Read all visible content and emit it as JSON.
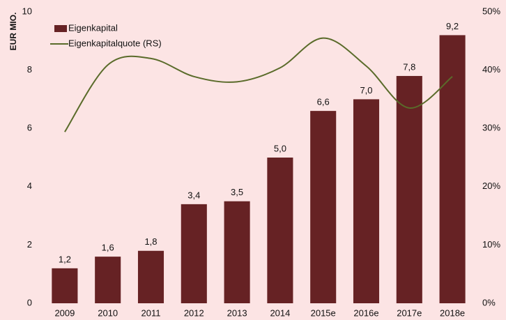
{
  "chart_data": {
    "type": "bar_line",
    "y_label": "EUR MIO.",
    "categories": [
      "2009",
      "2010",
      "2011",
      "2012",
      "2013",
      "2014",
      "2015e",
      "2016e",
      "2017e",
      "2018e"
    ],
    "series": [
      {
        "name": "Eigenkapital",
        "type": "bar",
        "color": "#662224",
        "values": [
          1.2,
          1.6,
          1.8,
          3.4,
          3.5,
          5.0,
          6.6,
          7.0,
          7.8,
          9.2
        ],
        "value_labels": [
          "1,2",
          "1,6",
          "1,8",
          "3,4",
          "3,5",
          "5,0",
          "6,6",
          "7,0",
          "7,8",
          "9,2"
        ]
      },
      {
        "name": "Eigenkapitalquote (RS)",
        "type": "line",
        "axis": "y2",
        "color": "#5a6b2a",
        "values": [
          29.4,
          40.9,
          42.0,
          38.9,
          38.0,
          40.4,
          45.5,
          40.7,
          33.5,
          38.9
        ]
      }
    ],
    "ylim": [
      0,
      10
    ],
    "yticks": [
      0,
      2,
      4,
      6,
      8,
      10
    ],
    "y2lim": [
      0,
      50
    ],
    "y2ticks": [
      {
        "value": 0,
        "label": "0%"
      },
      {
        "value": 10,
        "label": "10%"
      },
      {
        "value": 20,
        "label": "20%"
      },
      {
        "value": 30,
        "label": "30%"
      },
      {
        "value": 40,
        "label": "40%"
      },
      {
        "value": 50,
        "label": "50%"
      }
    ],
    "legend": "upper left"
  }
}
